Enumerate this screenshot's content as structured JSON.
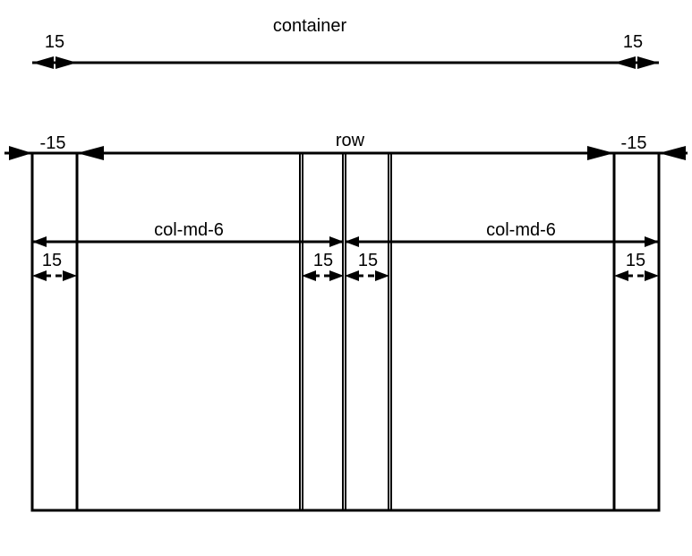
{
  "container": {
    "label": "container",
    "left_value": "15",
    "right_value": "15"
  },
  "row": {
    "label": "row",
    "left_value": "-15",
    "right_value": "-15"
  },
  "columns": [
    {
      "label": "col-md-6",
      "left_padding": "15",
      "right_padding": "15"
    },
    {
      "label": "col-md-6",
      "left_padding": "15",
      "right_padding": "15"
    }
  ]
}
